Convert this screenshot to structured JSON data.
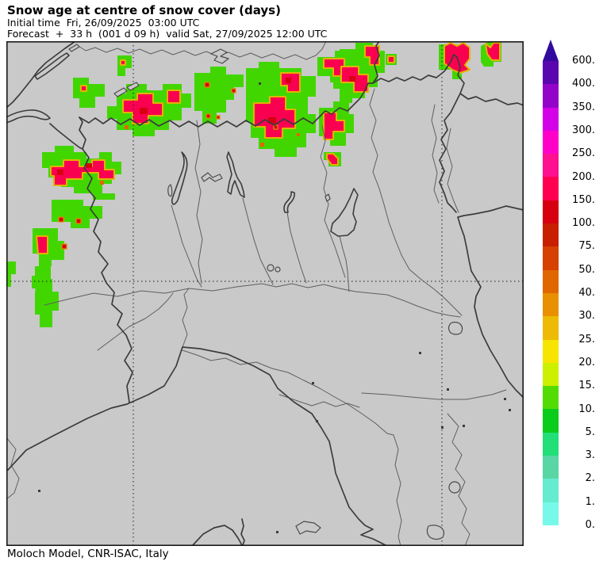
{
  "header": {
    "title": "Snow age at centre of snow cover (days)",
    "initial_time": "Initial time  Fri, 26/09/2025  03:00 UTC",
    "forecast": "Forecast  +  33 h  (001 d 09 h)  valid Sat, 27/09/2025 12:00 UTC"
  },
  "footer": {
    "credit": "Moloch Model, CNR-ISAC, Italy"
  },
  "colorbar": {
    "arrow_color": "#330A9E",
    "ticks_top_to_bottom": [
      "600.",
      "400.",
      "350.",
      "300.",
      "250.",
      "200.",
      "150.",
      "100.",
      "75.",
      "50.",
      "40.",
      "30.",
      "25.",
      "20.",
      "15.",
      "10.",
      "5.",
      "3.",
      "2.",
      "1.",
      "0."
    ],
    "segment_colors_top_to_bottom": [
      "#5A06AE",
      "#9404C8",
      "#D400E8",
      "#FF00C8",
      "#FF1090",
      "#FF0050",
      "#D60010",
      "#C81F00",
      "#D64000",
      "#E06700",
      "#E89000",
      "#EDBA06",
      "#F7E400",
      "#CCF000",
      "#52DC04",
      "#0ACC1C",
      "#22DF77",
      "#59D6A4",
      "#66EBD0",
      "#78F8E8"
    ]
  },
  "map": {
    "background": "#C9C9C9",
    "snow_colors": {
      "green_10_15_days": "#42D600",
      "pink_150_200_days": "#FA0050",
      "dark_red_100_150_days": "#D60010",
      "orange_40_50_days": "#E06700",
      "rim_contour": "#E2B400"
    }
  }
}
